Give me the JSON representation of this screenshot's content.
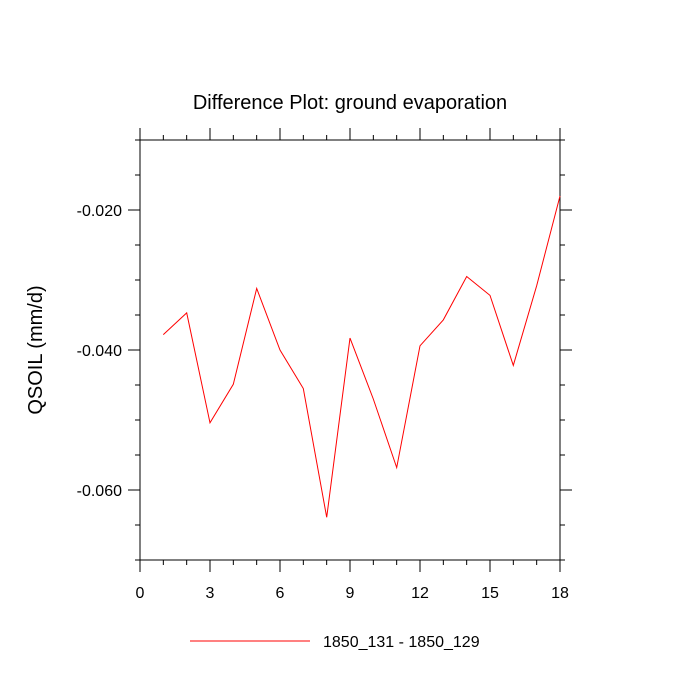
{
  "chart_data": {
    "type": "line",
    "title": "Difference Plot: ground evaporation",
    "xlabel": "",
    "ylabel": "QSOIL  (mm/d)",
    "xlim": [
      0,
      18
    ],
    "ylim": [
      -0.07,
      -0.01
    ],
    "xticks": [
      0,
      3,
      6,
      9,
      12,
      15,
      18
    ],
    "xtick_labels": [
      "0",
      "3",
      "6",
      "9",
      "12",
      "15",
      "18"
    ],
    "yticks": [
      -0.06,
      -0.04,
      -0.02
    ],
    "ytick_labels": [
      "-0.060",
      "-0.040",
      "-0.020"
    ],
    "grid": false,
    "legend": "bottom-center",
    "series": [
      {
        "name": "1850_131 - 1850_129",
        "color": "#ff0000",
        "x": [
          1,
          2,
          3,
          4,
          5,
          6,
          7,
          8,
          9,
          10,
          11,
          12,
          13,
          14,
          15,
          16,
          17,
          18
        ],
        "y": [
          -0.0378,
          -0.0347,
          -0.0504,
          -0.0449,
          -0.0312,
          -0.04,
          -0.0455,
          -0.0639,
          -0.0383,
          -0.047,
          -0.0568,
          -0.0394,
          -0.0357,
          -0.0295,
          -0.0322,
          -0.0422,
          -0.0308,
          -0.018
        ]
      }
    ]
  }
}
